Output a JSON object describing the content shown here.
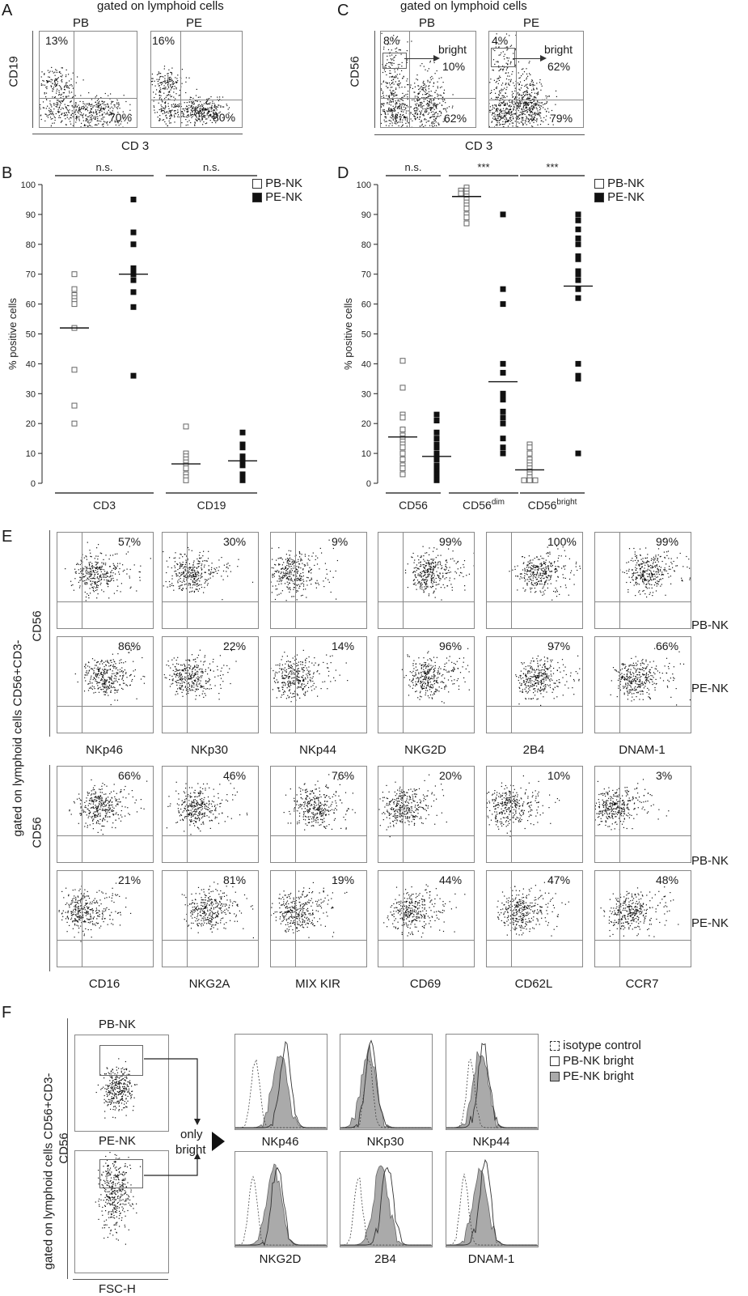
{
  "panelA": {
    "letter": "A",
    "title": "gated on lymphoid cells",
    "ylabel": "CD19",
    "xlabel": "CD 3",
    "plots": [
      {
        "name": "PB",
        "tl": "13%",
        "br": "70%"
      },
      {
        "name": "PE",
        "tl": "16%",
        "br": "80%"
      }
    ]
  },
  "panelC": {
    "letter": "C",
    "title": "gated on lymphoid cells",
    "ylabel": "CD56",
    "xlabel": "CD 3",
    "plots": [
      {
        "name": "PB",
        "tl": "8%",
        "bright_label": "bright",
        "bright_pct": "10%",
        "br": "62%"
      },
      {
        "name": "PE",
        "tl": "4%",
        "bright_label": "bright",
        "bright_pct": "62%",
        "br": "79%"
      }
    ]
  },
  "panelB": {
    "letter": "B",
    "ylabel": "% positive cells",
    "sig": [
      "n.s.",
      "n.s."
    ],
    "groups": [
      "CD3",
      "CD19"
    ],
    "legend": [
      "PB-NK",
      "PE-NK"
    ]
  },
  "panelD": {
    "letter": "D",
    "ylabel": "% positive cells",
    "sig": [
      "n.s.",
      "***",
      "***"
    ],
    "groups": [
      {
        "main": "CD56",
        "sup": ""
      },
      {
        "main": "CD56",
        "sup": "dim"
      },
      {
        "main": "CD56",
        "sup": "bright"
      }
    ],
    "legend": [
      "PB-NK",
      "PE-NK"
    ]
  },
  "chart_data": [
    {
      "type": "scatter",
      "panel": "B",
      "ylabel": "% positive cells",
      "ylim": [
        0,
        100
      ],
      "yticks": [
        0,
        10,
        20,
        30,
        40,
        50,
        60,
        70,
        80,
        90,
        100
      ],
      "categories": [
        "CD3",
        "CD19"
      ],
      "series": [
        {
          "name": "PB-NK",
          "group": "CD3",
          "values": [
            70,
            65,
            63,
            62,
            61,
            60,
            52,
            38,
            26,
            20
          ],
          "mean": 52
        },
        {
          "name": "PE-NK",
          "group": "CD3",
          "values": [
            95,
            84,
            80,
            72,
            71,
            70,
            68,
            64,
            59,
            36
          ],
          "mean": 70
        },
        {
          "name": "PB-NK",
          "group": "CD19",
          "values": [
            19,
            10,
            9,
            8,
            7,
            6,
            5,
            3,
            2,
            1
          ],
          "mean": 6.5
        },
        {
          "name": "PE-NK",
          "group": "CD19",
          "values": [
            17,
            13,
            12,
            9,
            8,
            7,
            6,
            3,
            2,
            1
          ],
          "mean": 7.5
        }
      ],
      "significance": [
        "n.s.",
        "n.s."
      ]
    },
    {
      "type": "scatter",
      "panel": "D",
      "ylabel": "% positive cells",
      "ylim": [
        0,
        100
      ],
      "yticks": [
        0,
        10,
        20,
        30,
        40,
        50,
        60,
        70,
        80,
        90,
        100
      ],
      "categories": [
        "CD56",
        "CD56dim",
        "CD56bright"
      ],
      "series": [
        {
          "name": "PB-NK",
          "group": "CD56",
          "values": [
            41,
            32,
            23,
            22,
            18,
            16,
            15,
            14,
            13,
            12,
            10,
            8,
            6,
            5,
            3
          ],
          "mean": 15.5
        },
        {
          "name": "PE-NK",
          "group": "CD56",
          "values": [
            23,
            21,
            17,
            15,
            13,
            12,
            10,
            9,
            8,
            6,
            5,
            4,
            3,
            2,
            1
          ],
          "mean": 9
        },
        {
          "name": "PB-NK",
          "group": "CD56dim",
          "values": [
            99,
            98,
            98,
            97,
            97,
            96,
            95,
            94,
            93,
            92,
            90,
            89,
            87
          ],
          "mean": 96
        },
        {
          "name": "PE-NK",
          "group": "CD56dim",
          "values": [
            90,
            65,
            60,
            40,
            37,
            30,
            29,
            28,
            24,
            22,
            20,
            15,
            12,
            10
          ],
          "mean": 34
        },
        {
          "name": "PB-NK",
          "group": "CD56bright",
          "values": [
            13,
            12,
            10,
            8,
            7,
            6,
            5,
            4,
            3,
            2,
            1,
            1,
            1
          ],
          "mean": 4.5
        },
        {
          "name": "PE-NK",
          "group": "CD56bright",
          "values": [
            90,
            88,
            85,
            82,
            80,
            76,
            75,
            71,
            70,
            68,
            65,
            62,
            40,
            36,
            35,
            10
          ],
          "mean": 66
        }
      ],
      "significance": [
        "n.s.",
        "***",
        "***"
      ]
    }
  ],
  "panelE": {
    "letter": "E",
    "ylabel_top": "gated on lymphoid cells CD56+CD3-",
    "ylabel_cd56": "CD56",
    "ylabel_cd56_b": "CD56",
    "row_labels": [
      "PB-NK",
      "PE-NK",
      "PB-NK",
      "PE-NK"
    ],
    "markers_top": [
      "NKp46",
      "NKp30",
      "NKp44",
      "NKG2D",
      "2B4",
      "DNAM-1"
    ],
    "markers_bottom": [
      "CD16",
      "NKG2A",
      "MIX KIR",
      "CD69",
      "CD62L",
      "CCR7"
    ],
    "pct_rows": [
      [
        "57%",
        "30%",
        "9%",
        "99%",
        "100%",
        "99%"
      ],
      [
        "86%",
        "22%",
        "14%",
        "96%",
        "97%",
        "66%"
      ],
      [
        "66%",
        "46%",
        "76%",
        "20%",
        "10%",
        "3%"
      ],
      [
        "21%",
        "81%",
        "19%",
        "44%",
        "47%",
        "48%"
      ]
    ]
  },
  "panelF": {
    "letter": "F",
    "ylabel_top": "gated on lymphoid cells CD56+CD3-",
    "ylabel_cd56": "CD56",
    "xlabel": "FSC-H",
    "plot_labels": [
      "PB-NK",
      "PE-NK"
    ],
    "arrow_label": [
      "only",
      "bright"
    ],
    "hist_labels": [
      "NKp46",
      "NKp30",
      "NKp44",
      "NKG2D",
      "2B4",
      "DNAM-1"
    ],
    "legend": [
      "isotype control",
      "PB-NK bright",
      "PE-NK bright"
    ]
  }
}
